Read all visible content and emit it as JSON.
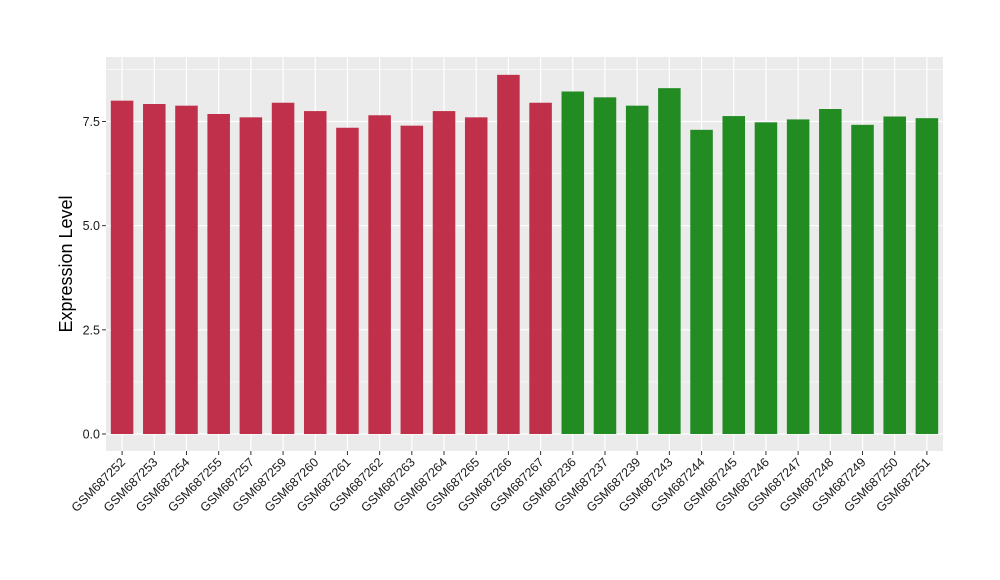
{
  "chart_data": {
    "type": "bar",
    "title": "",
    "xlabel": "",
    "ylabel": "Expression Level",
    "ylim": [
      0,
      9
    ],
    "y_ticks": [
      "0.0",
      "2.5",
      "5.0",
      "7.5"
    ],
    "grid": true,
    "legend": "none",
    "colors": {
      "group1": "#C0304A",
      "group2": "#228B22",
      "panel": "#EBEBEB",
      "grid": "#FFFFFF"
    },
    "categories": [
      "GSM687252",
      "GSM687253",
      "GSM687254",
      "GSM687255",
      "GSM687257",
      "GSM687259",
      "GSM687260",
      "GSM687261",
      "GSM687262",
      "GSM687263",
      "GSM687264",
      "GSM687265",
      "GSM687266",
      "GSM687267",
      "GSM687236",
      "GSM687237",
      "GSM687239",
      "GSM687243",
      "GSM687244",
      "GSM687245",
      "GSM687246",
      "GSM687247",
      "GSM687248",
      "GSM687249",
      "GSM687250",
      "GSM687251"
    ],
    "values": [
      8.0,
      7.92,
      7.88,
      7.68,
      7.6,
      7.95,
      7.75,
      7.35,
      7.65,
      7.4,
      7.75,
      7.6,
      8.62,
      7.95,
      8.22,
      8.08,
      7.88,
      8.3,
      7.3,
      7.63,
      7.48,
      7.55,
      7.8,
      7.42,
      7.62,
      7.58
    ],
    "groups": [
      "group1",
      "group1",
      "group1",
      "group1",
      "group1",
      "group1",
      "group1",
      "group1",
      "group1",
      "group1",
      "group1",
      "group1",
      "group1",
      "group1",
      "group2",
      "group2",
      "group2",
      "group2",
      "group2",
      "group2",
      "group2",
      "group2",
      "group2",
      "group2",
      "group2",
      "group2"
    ]
  }
}
